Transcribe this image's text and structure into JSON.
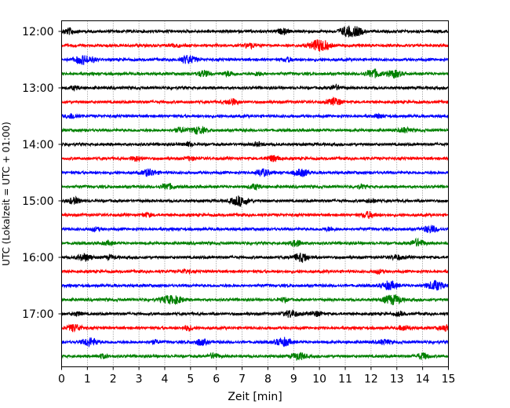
{
  "chart_data": {
    "type": "line",
    "title": "",
    "xlabel": "Zeit  [min]",
    "ylabel": "UTC (Lokalzeit = UTC + 01:00)",
    "xlim": [
      0,
      15
    ],
    "x_ticks": [
      "0",
      "1",
      "2",
      "3",
      "4",
      "5",
      "6",
      "7",
      "8",
      "9",
      "10",
      "11",
      "12",
      "13",
      "14",
      "15"
    ],
    "y_tick_labels": [
      "12:00",
      "13:00",
      "14:00",
      "15:00",
      "16:00",
      "17:00"
    ],
    "grid": "vertical dotted",
    "trace_interval_min": 15,
    "start_time": "12:00",
    "trace_colors": [
      "#000000",
      "#ff0000",
      "#0000ff",
      "#008000"
    ],
    "traces": [
      {
        "start": "12:00",
        "color": "#000000",
        "events": [
          [
            0.3,
            0.5
          ],
          [
            8.6,
            0.4
          ],
          [
            11.1,
            0.8
          ],
          [
            11.5,
            0.5
          ]
        ]
      },
      {
        "start": "12:15",
        "color": "#ff0000",
        "events": [
          [
            4.4,
            0.3
          ],
          [
            7.3,
            0.4
          ],
          [
            9.9,
            0.8
          ],
          [
            10.2,
            0.5
          ]
        ]
      },
      {
        "start": "12:30",
        "color": "#0000ff",
        "events": [
          [
            0.8,
            0.7
          ],
          [
            1.2,
            0.3
          ],
          [
            4.9,
            0.7
          ],
          [
            8.8,
            0.3
          ]
        ]
      },
      {
        "start": "12:45",
        "color": "#008000",
        "events": [
          [
            5.5,
            0.5
          ],
          [
            6.5,
            0.4
          ],
          [
            7.6,
            0.3
          ],
          [
            12.1,
            0.7
          ],
          [
            12.9,
            0.6
          ]
        ]
      },
      {
        "start": "13:00",
        "color": "#000000",
        "events": [
          [
            0.5,
            0.3
          ],
          [
            10.6,
            0.4
          ]
        ]
      },
      {
        "start": "13:15",
        "color": "#ff0000",
        "events": [
          [
            6.6,
            0.5
          ],
          [
            10.6,
            0.6
          ]
        ]
      },
      {
        "start": "13:30",
        "color": "#0000ff",
        "events": [
          [
            0.4,
            0.4
          ],
          [
            12.3,
            0.3
          ]
        ]
      },
      {
        "start": "13:45",
        "color": "#008000",
        "events": [
          [
            4.6,
            0.4
          ],
          [
            5.3,
            0.6
          ],
          [
            13.3,
            0.4
          ]
        ]
      },
      {
        "start": "14:00",
        "color": "#000000",
        "events": [
          [
            4.9,
            0.3
          ],
          [
            7.6,
            0.3
          ]
        ]
      },
      {
        "start": "14:15",
        "color": "#ff0000",
        "events": [
          [
            2.9,
            0.4
          ],
          [
            5.0,
            0.3
          ],
          [
            8.2,
            0.5
          ]
        ]
      },
      {
        "start": "14:30",
        "color": "#0000ff",
        "events": [
          [
            3.4,
            0.6
          ],
          [
            7.8,
            0.6
          ],
          [
            9.3,
            0.6
          ]
        ]
      },
      {
        "start": "14:45",
        "color": "#008000",
        "events": [
          [
            4.1,
            0.5
          ],
          [
            7.5,
            0.4
          ],
          [
            11.6,
            0.3
          ]
        ]
      },
      {
        "start": "15:00",
        "color": "#000000",
        "events": [
          [
            0.5,
            0.5
          ],
          [
            6.9,
            0.8
          ],
          [
            12.0,
            0.3
          ]
        ]
      },
      {
        "start": "15:15",
        "color": "#ff0000",
        "events": [
          [
            3.3,
            0.3
          ],
          [
            11.9,
            0.5
          ]
        ]
      },
      {
        "start": "15:30",
        "color": "#0000ff",
        "events": [
          [
            1.3,
            0.3
          ],
          [
            10.4,
            0.3
          ],
          [
            14.3,
            0.6
          ]
        ]
      },
      {
        "start": "15:45",
        "color": "#008000",
        "events": [
          [
            1.8,
            0.3
          ],
          [
            9.1,
            0.5
          ],
          [
            13.8,
            0.6
          ]
        ]
      },
      {
        "start": "16:00",
        "color": "#000000",
        "events": [
          [
            0.9,
            0.6
          ],
          [
            1.9,
            0.3
          ],
          [
            9.3,
            0.7
          ],
          [
            13.0,
            0.4
          ]
        ]
      },
      {
        "start": "16:15",
        "color": "#ff0000",
        "events": [
          [
            4.8,
            0.3
          ],
          [
            12.3,
            0.3
          ]
        ]
      },
      {
        "start": "16:30",
        "color": "#0000ff",
        "events": [
          [
            12.7,
            0.7
          ],
          [
            14.5,
            0.8
          ]
        ]
      },
      {
        "start": "16:45",
        "color": "#008000",
        "events": [
          [
            4.1,
            0.6
          ],
          [
            4.5,
            0.5
          ],
          [
            8.6,
            0.3
          ],
          [
            12.7,
            0.6
          ],
          [
            13.0,
            0.5
          ]
        ]
      },
      {
        "start": "17:00",
        "color": "#000000",
        "events": [
          [
            0.6,
            0.3
          ],
          [
            8.9,
            0.6
          ],
          [
            9.9,
            0.4
          ],
          [
            13.1,
            0.3
          ]
        ]
      },
      {
        "start": "17:15",
        "color": "#ff0000",
        "events": [
          [
            0.5,
            0.6
          ],
          [
            4.9,
            0.4
          ],
          [
            13.3,
            0.4
          ],
          [
            14.9,
            0.5
          ]
        ]
      },
      {
        "start": "17:30",
        "color": "#0000ff",
        "events": [
          [
            1.1,
            0.7
          ],
          [
            3.6,
            0.3
          ],
          [
            5.4,
            0.5
          ],
          [
            8.6,
            0.7
          ],
          [
            12.5,
            0.4
          ]
        ]
      },
      {
        "start": "17:45",
        "color": "#008000",
        "events": [
          [
            1.6,
            0.3
          ],
          [
            5.9,
            0.4
          ],
          [
            9.2,
            0.6
          ],
          [
            14.0,
            0.5
          ]
        ]
      }
    ]
  }
}
